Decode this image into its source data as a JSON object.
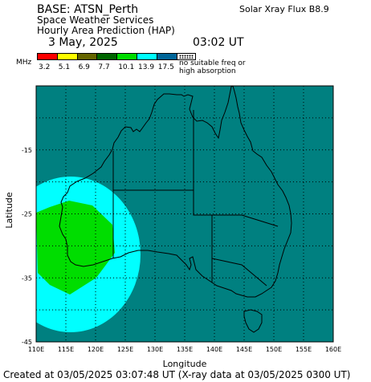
{
  "header": {
    "base": "BASE: ATSN_Perth",
    "service": "Space Weather Services",
    "product": "Hourly Area Prediction (HAP)",
    "date": "3 May, 2025",
    "time": "03:02 UT",
    "xray_flux": "Solar Xray Flux B8.9"
  },
  "legend": {
    "unit": "MHz",
    "levels": [
      {
        "label": "3.2",
        "color": "#ff0000"
      },
      {
        "label": "5.1",
        "color": "#ffff00"
      },
      {
        "label": "6.9",
        "color": "#666600"
      },
      {
        "label": "7.7",
        "color": "#006600"
      },
      {
        "label": "10.1",
        "color": "#00dd00"
      },
      {
        "label": "13.9",
        "color": "#00ffff"
      },
      {
        "label": "17.5",
        "color": "#006699"
      }
    ],
    "no_freq_label_1": "no suitable freq or",
    "no_freq_label_2": "high absorption"
  },
  "chart_data": {
    "type": "heatmap",
    "xlabel": "Longitude",
    "ylabel": "Latitude",
    "xlim": [
      110,
      160
    ],
    "ylim": [
      -45,
      -5
    ],
    "x_ticks": [
      "110E",
      "115E",
      "120E",
      "125E",
      "130E",
      "135E",
      "140E",
      "145E",
      "150E",
      "155E",
      "160E"
    ],
    "y_ticks": [
      {
        "value": -15,
        "label": "-15"
      },
      {
        "value": -25,
        "label": "-25"
      },
      {
        "value": -35,
        "label": "-35"
      },
      {
        "value": -45,
        "label": "-45"
      }
    ],
    "grid": true,
    "background_color": "#008080",
    "regions": [
      {
        "band": "13.9",
        "color": "#00ffff",
        "center": [
          115.5,
          -31.5
        ]
      },
      {
        "band": "10.1",
        "color": "#00dd00",
        "center": [
          114.5,
          -31.0
        ]
      }
    ]
  },
  "footer": "Created at 03/05/2025 03:07:48 UT (X-ray data at 03/05/2025 0300 UT)"
}
